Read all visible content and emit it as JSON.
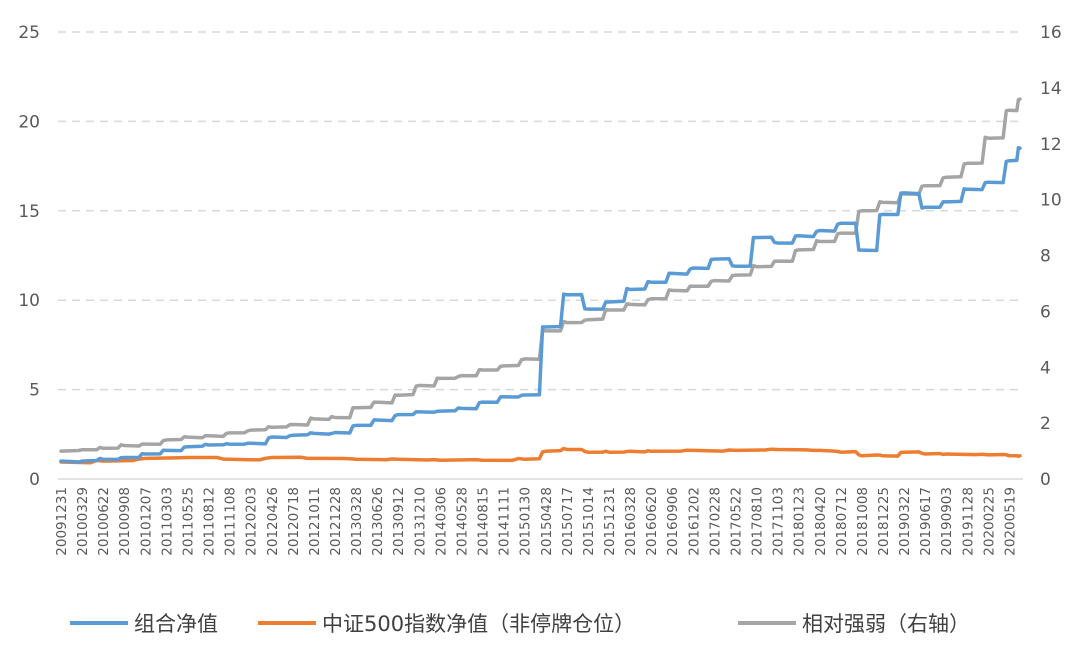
{
  "chart_data": {
    "type": "line",
    "title": "",
    "xlabel": "",
    "ylabel": "",
    "grid": true,
    "legend_position": "bottom",
    "x_tick_labels": [
      "20091231",
      "20100329",
      "20100622",
      "20100908",
      "20101207",
      "20110303",
      "20110525",
      "20110812",
      "20111108",
      "20120203",
      "20120426",
      "20120718",
      "20121011",
      "20121228",
      "20130328",
      "20130626",
      "20130912",
      "20131210",
      "20140306",
      "20140528",
      "20140815",
      "20141111",
      "20150130",
      "20150428",
      "20150717",
      "20151014",
      "20151231",
      "20160328",
      "20160620",
      "20160906",
      "20161202",
      "20170228",
      "20170522",
      "20170810",
      "20171103",
      "20180123",
      "20180420",
      "20180712",
      "20181008",
      "20181225",
      "20190322",
      "20190617",
      "20190903",
      "20191128",
      "20200225",
      "20200519"
    ],
    "y_left": {
      "min": 0,
      "max": 25,
      "ticks": [
        0,
        5,
        10,
        15,
        20,
        25
      ]
    },
    "y_right": {
      "min": 0,
      "max": 16,
      "ticks": [
        0,
        2,
        4,
        6,
        8,
        10,
        12,
        14,
        16
      ]
    },
    "series": [
      {
        "name": "组合净值",
        "color": "#5B9BD5",
        "axis": "left",
        "points": [
          [
            0,
            1.0
          ],
          [
            1,
            1.0
          ],
          [
            2,
            1.1
          ],
          [
            3,
            1.2
          ],
          [
            4,
            1.4
          ],
          [
            5,
            1.6
          ],
          [
            6,
            1.8
          ],
          [
            7,
            1.9
          ],
          [
            8,
            1.95
          ],
          [
            9,
            2.0
          ],
          [
            10,
            2.35
          ],
          [
            11,
            2.45
          ],
          [
            12,
            2.55
          ],
          [
            13,
            2.6
          ],
          [
            14,
            3.0
          ],
          [
            15,
            3.3
          ],
          [
            16,
            3.6
          ],
          [
            17,
            3.75
          ],
          [
            18,
            3.8
          ],
          [
            19,
            3.95
          ],
          [
            20,
            4.3
          ],
          [
            21,
            4.6
          ],
          [
            22,
            4.7
          ],
          [
            23,
            8.5
          ],
          [
            24,
            10.3
          ],
          [
            25,
            9.5
          ],
          [
            26,
            9.9
          ],
          [
            27,
            10.6
          ],
          [
            28,
            11.0
          ],
          [
            29,
            11.5
          ],
          [
            30,
            11.8
          ],
          [
            31,
            12.3
          ],
          [
            32,
            11.9
          ],
          [
            33,
            13.5
          ],
          [
            34,
            13.2
          ],
          [
            35,
            13.6
          ],
          [
            36,
            13.9
          ],
          [
            37,
            14.3
          ],
          [
            38,
            12.8
          ],
          [
            39,
            14.8
          ],
          [
            40,
            16.0
          ],
          [
            41,
            15.2
          ],
          [
            42,
            15.5
          ],
          [
            43,
            16.2
          ],
          [
            44,
            16.6
          ],
          [
            45,
            17.8
          ],
          [
            45.5,
            18.5
          ]
        ]
      },
      {
        "name": "中证500指数净值（非停牌仓位）",
        "color": "#ED7D31",
        "axis": "left",
        "points": [
          [
            0,
            0.95
          ],
          [
            2,
            1.0
          ],
          [
            4,
            1.15
          ],
          [
            6,
            1.2
          ],
          [
            8,
            1.1
          ],
          [
            10,
            1.2
          ],
          [
            12,
            1.15
          ],
          [
            14,
            1.1
          ],
          [
            16,
            1.1
          ],
          [
            18,
            1.05
          ],
          [
            20,
            1.05
          ],
          [
            22,
            1.1
          ],
          [
            23,
            1.55
          ],
          [
            24,
            1.65
          ],
          [
            25,
            1.5
          ],
          [
            26,
            1.5
          ],
          [
            27,
            1.55
          ],
          [
            28,
            1.55
          ],
          [
            30,
            1.6
          ],
          [
            32,
            1.6
          ],
          [
            34,
            1.65
          ],
          [
            36,
            1.6
          ],
          [
            37,
            1.5
          ],
          [
            38,
            1.3
          ],
          [
            39,
            1.3
          ],
          [
            40,
            1.5
          ],
          [
            41,
            1.4
          ],
          [
            42,
            1.4
          ],
          [
            44,
            1.35
          ],
          [
            45,
            1.3
          ],
          [
            45.5,
            1.3
          ]
        ]
      },
      {
        "name": "相对强弱（右轴）",
        "color": "#A5A5A5",
        "axis": "right",
        "points": [
          [
            0,
            1.0
          ],
          [
            1,
            1.05
          ],
          [
            2,
            1.1
          ],
          [
            3,
            1.2
          ],
          [
            4,
            1.25
          ],
          [
            5,
            1.4
          ],
          [
            6,
            1.5
          ],
          [
            7,
            1.55
          ],
          [
            8,
            1.65
          ],
          [
            9,
            1.75
          ],
          [
            10,
            1.85
          ],
          [
            11,
            1.95
          ],
          [
            12,
            2.15
          ],
          [
            13,
            2.2
          ],
          [
            14,
            2.55
          ],
          [
            15,
            2.75
          ],
          [
            16,
            3.0
          ],
          [
            17,
            3.35
          ],
          [
            18,
            3.6
          ],
          [
            19,
            3.7
          ],
          [
            20,
            3.9
          ],
          [
            21,
            4.05
          ],
          [
            22,
            4.3
          ],
          [
            23,
            5.3
          ],
          [
            24,
            5.6
          ],
          [
            25,
            5.7
          ],
          [
            26,
            6.05
          ],
          [
            27,
            6.25
          ],
          [
            28,
            6.45
          ],
          [
            29,
            6.75
          ],
          [
            30,
            6.9
          ],
          [
            31,
            7.1
          ],
          [
            32,
            7.3
          ],
          [
            33,
            7.6
          ],
          [
            34,
            7.8
          ],
          [
            35,
            8.2
          ],
          [
            36,
            8.5
          ],
          [
            37,
            8.8
          ],
          [
            38,
            9.6
          ],
          [
            39,
            9.9
          ],
          [
            40,
            10.2
          ],
          [
            41,
            10.5
          ],
          [
            42,
            10.8
          ],
          [
            43,
            11.3
          ],
          [
            44,
            12.2
          ],
          [
            45,
            13.2
          ],
          [
            45.5,
            13.6
          ]
        ]
      }
    ]
  }
}
